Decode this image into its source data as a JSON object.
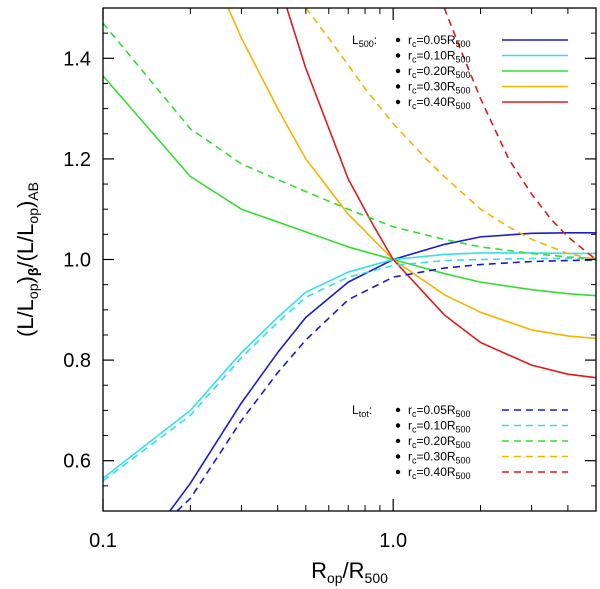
{
  "chart_data": {
    "type": "line",
    "xlabel": {
      "main": "R",
      "sub": "op",
      "sep": "/R",
      "sub2": "500"
    },
    "ylabel": {
      "parts": [
        {
          "t": "(L/L",
          "s": "n"
        },
        {
          "t": "op",
          "s": "sub"
        },
        {
          "t": ")",
          "s": "n"
        },
        {
          "t": "β",
          "s": "subb"
        },
        {
          "t": "/(L/L",
          "s": "n"
        },
        {
          "t": "op",
          "s": "sub"
        },
        {
          "t": ")",
          "s": "n"
        },
        {
          "t": "AB",
          "s": "sub"
        }
      ]
    },
    "x_scale": "log",
    "xlim": [
      0.1,
      5.0
    ],
    "ylim": [
      0.5,
      1.5
    ],
    "x_ticks": [
      {
        "value": 0.1,
        "label": "0.1"
      },
      {
        "value": 1.0,
        "label": "1.0"
      }
    ],
    "y_ticks": [
      {
        "value": 0.6,
        "label": "0.6"
      },
      {
        "value": 0.8,
        "label": "0.8"
      },
      {
        "value": 1.0,
        "label": "1.0"
      },
      {
        "value": 1.2,
        "label": "1.2"
      },
      {
        "value": 1.4,
        "label": "1.4"
      }
    ],
    "grid": false,
    "legends": [
      {
        "position": "top-right",
        "head_main": "L",
        "head_sub": "500",
        "head_colon": ":",
        "entries": [
          {
            "main": "r",
            "sub": "c",
            "mid": "=0.05R",
            "sub2": "500",
            "color": "#1c1cc8",
            "dash": "solid"
          },
          {
            "main": "r",
            "sub": "c",
            "mid": "=0.10R",
            "sub2": "500",
            "color": "#33e0e8",
            "dash": "solid"
          },
          {
            "main": "r",
            "sub": "c",
            "mid": "=0.20R",
            "sub2": "500",
            "color": "#33dd33",
            "dash": "solid"
          },
          {
            "main": "r",
            "sub": "c",
            "mid": "=0.30R",
            "sub2": "500",
            "color": "#f5b400",
            "dash": "solid"
          },
          {
            "main": "r",
            "sub": "c",
            "mid": "=0.40R",
            "sub2": "500",
            "color": "#dd1c1c",
            "dash": "solid"
          }
        ]
      },
      {
        "position": "bottom-right",
        "head_main": "L",
        "head_sub": "tot",
        "head_colon": ":",
        "entries": [
          {
            "main": "r",
            "sub": "c",
            "mid": "=0.05R",
            "sub2": "500",
            "color": "#1c1cc8",
            "dash": "dashed"
          },
          {
            "main": "r",
            "sub": "c",
            "mid": "=0.10R",
            "sub2": "500",
            "color": "#33e0e8",
            "dash": "dashed"
          },
          {
            "main": "r",
            "sub": "c",
            "mid": "=0.20R",
            "sub2": "500",
            "color": "#33dd33",
            "dash": "dashed"
          },
          {
            "main": "r",
            "sub": "c",
            "mid": "=0.30R",
            "sub2": "500",
            "color": "#f5b400",
            "dash": "dashed"
          },
          {
            "main": "r",
            "sub": "c",
            "mid": "=0.40R",
            "sub2": "500",
            "color": "#dd1c1c",
            "dash": "dashed"
          }
        ]
      }
    ],
    "series": [
      {
        "id": "l500-rc005",
        "color": "#1c1cc8",
        "dash": "solid",
        "x": [
          0.17,
          0.2,
          0.3,
          0.4,
          0.5,
          0.7,
          1.0,
          1.5,
          2.0,
          3.0,
          4.0,
          5.0
        ],
        "y": [
          0.5,
          0.555,
          0.715,
          0.815,
          0.885,
          0.955,
          1.0,
          1.03,
          1.045,
          1.052,
          1.053,
          1.053
        ]
      },
      {
        "id": "l500-rc010",
        "color": "#33e0e8",
        "dash": "solid",
        "x": [
          0.1,
          0.2,
          0.3,
          0.4,
          0.5,
          0.7,
          1.0,
          1.5,
          2.0,
          3.0,
          4.0,
          5.0
        ],
        "y": [
          0.565,
          0.7,
          0.815,
          0.885,
          0.935,
          0.975,
          1.0,
          1.01,
          1.013,
          1.013,
          1.012,
          1.012
        ]
      },
      {
        "id": "l500-rc020",
        "color": "#33dd33",
        "dash": "solid",
        "x": [
          0.1,
          0.2,
          0.3,
          0.5,
          0.7,
          1.0,
          1.5,
          2.0,
          3.0,
          4.0,
          5.0
        ],
        "y": [
          1.365,
          1.165,
          1.1,
          1.055,
          1.025,
          1.0,
          0.972,
          0.955,
          0.94,
          0.932,
          0.928
        ]
      },
      {
        "id": "l500-rc030",
        "color": "#f5b400",
        "dash": "solid",
        "x": [
          0.27,
          0.3,
          0.4,
          0.5,
          0.7,
          1.0,
          1.5,
          2.0,
          3.0,
          4.0,
          5.0
        ],
        "y": [
          1.5,
          1.44,
          1.3,
          1.2,
          1.09,
          1.0,
          0.93,
          0.895,
          0.86,
          0.848,
          0.843
        ]
      },
      {
        "id": "l500-rc040",
        "color": "#dd1c1c",
        "dash": "solid",
        "x": [
          0.43,
          0.5,
          0.7,
          0.85,
          1.0,
          1.5,
          2.0,
          3.0,
          4.0,
          5.0
        ],
        "y": [
          1.5,
          1.38,
          1.16,
          1.07,
          1.0,
          0.89,
          0.835,
          0.79,
          0.772,
          0.765
        ]
      },
      {
        "id": "ltot-rc005",
        "color": "#1c1cc8",
        "dash": "dashed",
        "x": [
          0.18,
          0.2,
          0.3,
          0.4,
          0.5,
          0.7,
          1.0,
          1.5,
          2.0,
          3.0,
          4.0,
          5.0
        ],
        "y": [
          0.5,
          0.525,
          0.68,
          0.775,
          0.84,
          0.92,
          0.965,
          0.983,
          0.99,
          0.996,
          0.998,
          0.999
        ]
      },
      {
        "id": "ltot-rc010",
        "color": "#33e0e8",
        "dash": "dashed",
        "x": [
          0.1,
          0.2,
          0.3,
          0.4,
          0.5,
          0.7,
          1.0,
          1.5,
          2.0,
          3.0,
          4.0,
          5.0
        ],
        "y": [
          0.56,
          0.69,
          0.805,
          0.875,
          0.925,
          0.965,
          0.988,
          0.998,
          1.0,
          1.002,
          1.002,
          1.002
        ]
      },
      {
        "id": "ltot-rc020",
        "color": "#33dd33",
        "dash": "dashed",
        "x": [
          0.1,
          0.2,
          0.3,
          0.5,
          0.7,
          1.0,
          1.5,
          2.0,
          3.0,
          4.0,
          5.0
        ],
        "y": [
          1.47,
          1.26,
          1.19,
          1.135,
          1.1,
          1.065,
          1.04,
          1.025,
          1.012,
          1.005,
          1.002
        ]
      },
      {
        "id": "ltot-rc030",
        "color": "#f5b400",
        "dash": "dashed",
        "x": [
          0.5,
          0.6,
          0.8,
          1.0,
          1.3,
          1.5,
          2.0,
          2.5,
          3.0,
          4.0,
          5.0
        ],
        "y": [
          1.5,
          1.44,
          1.34,
          1.27,
          1.2,
          1.165,
          1.1,
          1.065,
          1.04,
          1.012,
          1.0
        ]
      },
      {
        "id": "ltot-rc040",
        "color": "#dd1c1c",
        "dash": "dashed",
        "x": [
          1.5,
          1.7,
          2.0,
          2.5,
          3.0,
          3.5,
          4.0,
          5.0
        ],
        "y": [
          1.5,
          1.42,
          1.32,
          1.2,
          1.13,
          1.08,
          1.045,
          1.0
        ]
      }
    ]
  }
}
